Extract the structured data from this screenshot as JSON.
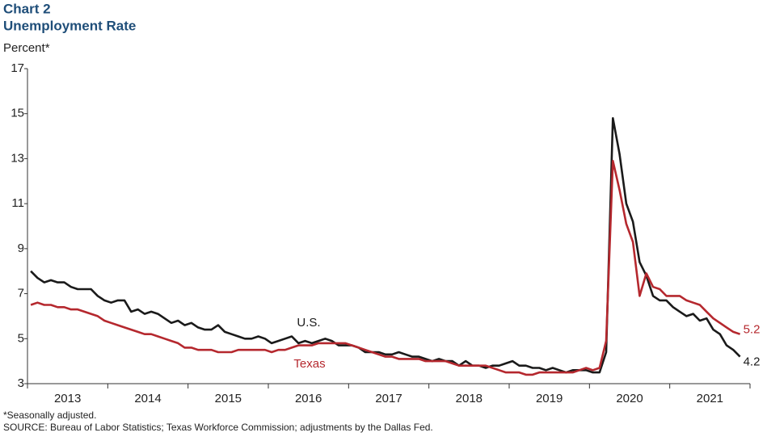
{
  "chart_data": {
    "type": "line",
    "title": "Chart 2",
    "subtitle": "Unemployment Rate",
    "y_label": "Percent*",
    "footnote": "*Seasonally adjusted.",
    "source": "SOURCE: Bureau of Labor Statistics; Texas Workforce Commission; adjustments by the Dallas Fed.",
    "categories": [
      null,
      null,
      null,
      null,
      null,
      null,
      "2013",
      null,
      null,
      null,
      null,
      null,
      null,
      null,
      null,
      null,
      null,
      null,
      "2014",
      null,
      null,
      null,
      null,
      null,
      null,
      null,
      null,
      null,
      null,
      null,
      "2015",
      null,
      null,
      null,
      null,
      null,
      null,
      null,
      null,
      null,
      null,
      null,
      "2016",
      null,
      null,
      null,
      null,
      null,
      null,
      null,
      null,
      null,
      null,
      null,
      "2017",
      null,
      null,
      null,
      null,
      null,
      null,
      null,
      null,
      null,
      null,
      null,
      "2018",
      null,
      null,
      null,
      null,
      null,
      null,
      null,
      null,
      null,
      null,
      null,
      "2019",
      null,
      null,
      null,
      null,
      null,
      null,
      null,
      null,
      null,
      null,
      null,
      "2020",
      null,
      null,
      null,
      null,
      null,
      null,
      null,
      null,
      null,
      null,
      null,
      "2021",
      null,
      null,
      null,
      null
    ],
    "series": [
      {
        "name": "U.S.",
        "color": "#1a1a1a",
        "values": [
          8.0,
          7.7,
          7.5,
          7.6,
          7.5,
          7.5,
          7.3,
          7.2,
          7.2,
          7.2,
          6.9,
          6.7,
          6.6,
          6.7,
          6.7,
          6.2,
          6.3,
          6.1,
          6.2,
          6.1,
          5.9,
          5.7,
          5.8,
          5.6,
          5.7,
          5.5,
          5.4,
          5.4,
          5.6,
          5.3,
          5.2,
          5.1,
          5.0,
          5.0,
          5.1,
          5.0,
          4.8,
          4.9,
          5.0,
          5.1,
          4.8,
          4.9,
          4.8,
          4.9,
          5.0,
          4.9,
          4.7,
          4.7,
          4.7,
          4.6,
          4.4,
          4.4,
          4.4,
          4.3,
          4.3,
          4.4,
          4.3,
          4.2,
          4.2,
          4.1,
          4.0,
          4.1,
          4.0,
          4.0,
          3.8,
          4.0,
          3.8,
          3.8,
          3.7,
          3.8,
          3.8,
          3.9,
          4.0,
          3.8,
          3.8,
          3.7,
          3.7,
          3.6,
          3.7,
          3.6,
          3.5,
          3.6,
          3.6,
          3.6,
          3.5,
          3.5,
          4.4,
          14.8,
          13.2,
          11.0,
          10.2,
          8.4,
          7.8,
          6.9,
          6.7,
          6.7,
          6.4,
          6.2,
          6.0,
          6.1,
          5.8,
          5.9,
          5.4,
          5.2,
          4.7,
          4.5,
          4.2
        ]
      },
      {
        "name": "Texas",
        "color": "#b5282e",
        "values": [
          6.5,
          6.6,
          6.5,
          6.5,
          6.4,
          6.4,
          6.3,
          6.3,
          6.2,
          6.1,
          6.0,
          5.8,
          5.7,
          5.6,
          5.5,
          5.4,
          5.3,
          5.2,
          5.2,
          5.1,
          5.0,
          4.9,
          4.8,
          4.6,
          4.6,
          4.5,
          4.5,
          4.5,
          4.4,
          4.4,
          4.4,
          4.5,
          4.5,
          4.5,
          4.5,
          4.5,
          4.4,
          4.5,
          4.5,
          4.6,
          4.7,
          4.7,
          4.7,
          4.8,
          4.8,
          4.8,
          4.8,
          4.8,
          4.7,
          4.6,
          4.5,
          4.4,
          4.3,
          4.2,
          4.2,
          4.1,
          4.1,
          4.1,
          4.1,
          4.0,
          4.0,
          4.0,
          4.0,
          3.9,
          3.8,
          3.8,
          3.8,
          3.8,
          3.8,
          3.7,
          3.6,
          3.5,
          3.5,
          3.5,
          3.4,
          3.4,
          3.5,
          3.5,
          3.5,
          3.5,
          3.5,
          3.5,
          3.6,
          3.7,
          3.6,
          3.7,
          4.9,
          12.9,
          11.6,
          10.1,
          9.3,
          6.9,
          7.9,
          7.3,
          7.2,
          6.9,
          6.9,
          6.9,
          6.7,
          6.6,
          6.5,
          6.2,
          5.9,
          5.7,
          5.5,
          5.3,
          5.2
        ]
      }
    ],
    "ylim": [
      3,
      17
    ],
    "yticks": [
      3,
      5,
      7,
      9,
      11,
      13,
      15,
      17
    ],
    "grid": false
  }
}
